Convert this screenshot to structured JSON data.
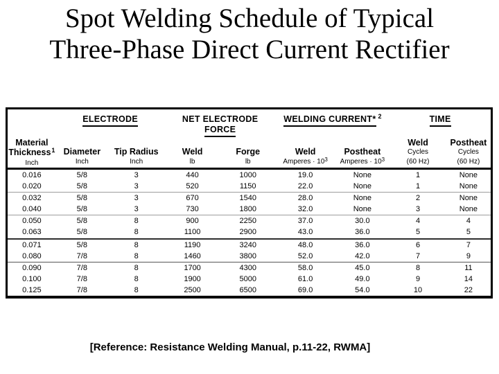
{
  "slide": {
    "title_line1": "Spot Welding Schedule of Typical",
    "title_line2": "Three-Phase Direct Current Rectifier",
    "reference": "[Reference: Resistance Welding Manual, p.11-22, RWMA]"
  },
  "table": {
    "groups": {
      "electrode": "ELECTRODE",
      "net_electrode_force_line1": "NET ELECTRODE",
      "net_electrode_force_line2": "FORCE",
      "welding_current": "WELDING CURRENT*",
      "welding_current_sup": "2",
      "time": "TIME"
    },
    "columns": [
      {
        "line1": "Material",
        "line2": "Thickness",
        "sup": "1",
        "unit": "Inch"
      },
      {
        "line1": "Diameter",
        "unit": "Inch"
      },
      {
        "line1": "Tip Radius",
        "unit": "Inch"
      },
      {
        "line1": "Weld",
        "unit": "lb"
      },
      {
        "line1": "Forge",
        "unit": "lb"
      },
      {
        "line1": "Weld",
        "unit": "Amperes · 10",
        "unit_sup": "3"
      },
      {
        "line1": "Postheat",
        "unit": "Amperes · 10",
        "unit_sup": "3"
      },
      {
        "line1": "Weld",
        "line2": "Cycles",
        "unit": "(60 Hz)"
      },
      {
        "line1": "Postheat",
        "line2": "Cycles",
        "unit": "(60 Hz)"
      }
    ],
    "rows": [
      [
        "0.016",
        "5/8",
        "3",
        "440",
        "1000",
        "19.0",
        "None",
        "1",
        "None"
      ],
      [
        "0.020",
        "5/8",
        "3",
        "520",
        "1150",
        "22.0",
        "None",
        "1",
        "None"
      ],
      [
        "0.032",
        "5/8",
        "3",
        "670",
        "1540",
        "28.0",
        "None",
        "2",
        "None"
      ],
      [
        "0.040",
        "5/8",
        "3",
        "730",
        "1800",
        "32.0",
        "None",
        "3",
        "None"
      ],
      [
        "0.050",
        "5/8",
        "8",
        "900",
        "2250",
        "37.0",
        "30.0",
        "4",
        "4"
      ],
      [
        "0.063",
        "5/8",
        "8",
        "1100",
        "2900",
        "43.0",
        "36.0",
        "5",
        "5"
      ],
      [
        "0.071",
        "5/8",
        "8",
        "1190",
        "3240",
        "48.0",
        "36.0",
        "6",
        "7"
      ],
      [
        "0.080",
        "7/8",
        "8",
        "1460",
        "3800",
        "52.0",
        "42.0",
        "7",
        "9"
      ],
      [
        "0.090",
        "7/8",
        "8",
        "1700",
        "4300",
        "58.0",
        "45.0",
        "8",
        "11"
      ],
      [
        "0.100",
        "7/8",
        "8",
        "1900",
        "5000",
        "61.0",
        "49.0",
        "9",
        "14"
      ],
      [
        "0.125",
        "7/8",
        "8",
        "2500",
        "6500",
        "69.0",
        "54.0",
        "10",
        "22"
      ]
    ],
    "colors": {
      "text": "#000000",
      "background": "#ffffff",
      "border": "#000000",
      "separator_light": "#9c9c9c",
      "separator_dark": "#2e2e2e"
    }
  }
}
